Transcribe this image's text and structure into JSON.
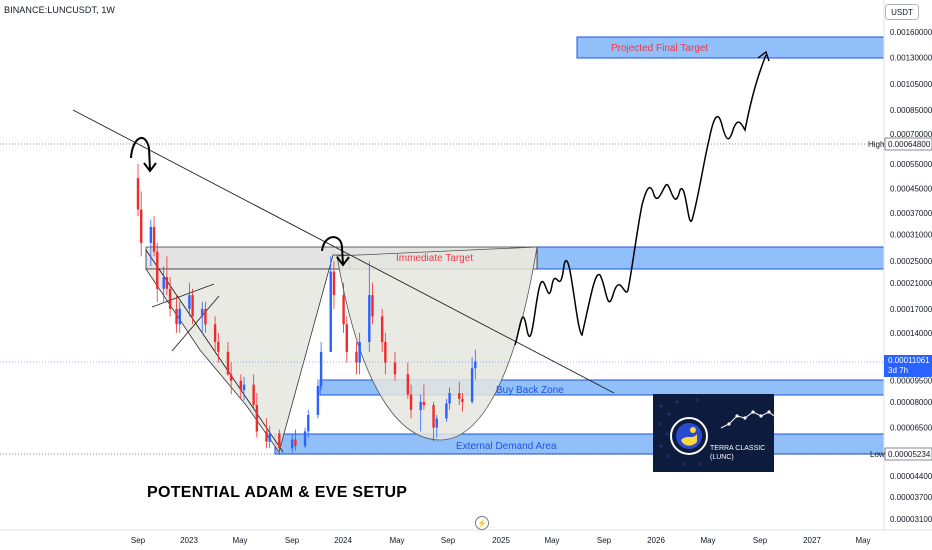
{
  "ticker": "BINANCE:LUNCUSDT, 1W",
  "currency": "USDT",
  "setup_title": "POTENTIAL ADAM & EVE SETUP",
  "logo": {
    "name": "TERRA CLASSIC",
    "symbol": "(LUNC)"
  },
  "zones": {
    "projected_target": "Projected Final Target",
    "immediate_target": "Immediate Target",
    "buy_back": "Buy Back Zone",
    "external_demand": "External Demand Area"
  },
  "price_axis": {
    "ticks": [
      "0.00160000",
      "0.00130000",
      "0.00105000",
      "0.00085000",
      "0.00070000",
      "0.00055000",
      "0.00045000",
      "0.00037000",
      "0.00031000",
      "0.00025000",
      "0.00021000",
      "0.00017000",
      "0.00014000",
      "0.00009500",
      "0.00008000",
      "0.00006500",
      "0.00004400",
      "0.00003700",
      "0.00003100"
    ],
    "high_label": "High",
    "high_value": "0.00064800",
    "low_label": "Low",
    "low_value": "0.00005234",
    "last_price": "0.00011061",
    "countdown": "3d 7h"
  },
  "time_axis": [
    "Sep",
    "2023",
    "May",
    "Sep",
    "2024",
    "May",
    "Sep",
    "2025",
    "May",
    "Sep",
    "2026",
    "May",
    "Sep",
    "2027",
    "May"
  ],
  "colors": {
    "up": "#2962ff",
    "down": "#ef2b2b",
    "zone_fill": "#90bff9",
    "zone_border": "#1e53e5",
    "cup_fill": "#d9d9d9",
    "text_red": "#f23645",
    "text_blue": "#1e53e5"
  },
  "chart_data": {
    "type": "candlestick",
    "symbol": "LUNCUSDT",
    "interval": "1W",
    "y_scale": "log",
    "ylim": [
      2.9e-05,
      0.0021
    ],
    "x_range": [
      "2022-08",
      "2027-08"
    ],
    "grid": false,
    "last_price": 0.00011061,
    "high": 0.000648,
    "low": 5.234e-05,
    "zones": [
      {
        "label": "Projected Final Target",
        "from": 0.00128,
        "to": 0.00161
      },
      {
        "label": "Immediate Target",
        "from": 0.00023,
        "to": 0.00028
      },
      {
        "label": "Buy Back Zone",
        "from": 8.55e-05,
        "to": 9.55e-05
      },
      {
        "label": "External Demand Area",
        "from": 5.23e-05,
        "to": 6.3e-05
      }
    ],
    "candles": [
      {
        "t": "2022-09",
        "o": 0.00049,
        "h": 0.00055,
        "l": 0.00036,
        "c": 0.00038
      },
      {
        "t": "2022-09",
        "o": 0.00038,
        "h": 0.00044,
        "l": 0.00026,
        "c": 0.00029
      },
      {
        "t": "2022-10",
        "o": 0.00029,
        "h": 0.00035,
        "l": 0.00024,
        "c": 0.00033
      },
      {
        "t": "2022-10",
        "o": 0.00033,
        "h": 0.00036,
        "l": 0.00026,
        "c": 0.00027
      },
      {
        "t": "2022-10",
        "o": 0.00027,
        "h": 0.00029,
        "l": 0.00018,
        "c": 0.0002
      },
      {
        "t": "2022-11",
        "o": 0.0002,
        "h": 0.00024,
        "l": 0.00018,
        "c": 0.00022
      },
      {
        "t": "2022-11",
        "o": 0.00022,
        "h": 0.00026,
        "l": 0.00019,
        "c": 0.0002
      },
      {
        "t": "2022-11",
        "o": 0.0002,
        "h": 0.00022,
        "l": 0.00016,
        "c": 0.00017
      },
      {
        "t": "2022-12",
        "o": 0.00017,
        "h": 0.00019,
        "l": 0.00014,
        "c": 0.00015
      },
      {
        "t": "2022-12",
        "o": 0.00015,
        "h": 0.00018,
        "l": 0.00014,
        "c": 0.00017
      },
      {
        "t": "2023-01",
        "o": 0.00017,
        "h": 0.00021,
        "l": 0.00016,
        "c": 0.00019
      },
      {
        "t": "2023-01",
        "o": 0.00019,
        "h": 0.0002,
        "l": 0.00015,
        "c": 0.00016
      },
      {
        "t": "2023-02",
        "o": 0.00016,
        "h": 0.00018,
        "l": 0.00014,
        "c": 0.00017
      },
      {
        "t": "2023-02",
        "o": 0.00017,
        "h": 0.00018,
        "l": 0.00014,
        "c": 0.00015
      },
      {
        "t": "2023-03",
        "o": 0.00015,
        "h": 0.00016,
        "l": 0.00012,
        "c": 0.00013
      },
      {
        "t": "2023-03",
        "o": 0.00013,
        "h": 0.00014,
        "l": 0.00011,
        "c": 0.00012
      },
      {
        "t": "2023-04",
        "o": 0.00012,
        "h": 0.00013,
        "l": 9.9e-05,
        "c": 0.0001
      },
      {
        "t": "2023-04",
        "o": 0.0001,
        "h": 0.00011,
        "l": 8.5e-05,
        "c": 9.5e-05
      },
      {
        "t": "2023-05",
        "o": 9.5e-05,
        "h": 0.0001,
        "l": 8.2e-05,
        "c": 8.8e-05
      },
      {
        "t": "2023-05",
        "o": 8.8e-05,
        "h": 9.8e-05,
        "l": 8.1e-05,
        "c": 9.2e-05
      },
      {
        "t": "2023-06",
        "o": 9.2e-05,
        "h": 0.0001,
        "l": 7.5e-05,
        "c": 7.8e-05
      },
      {
        "t": "2023-06",
        "o": 7.8e-05,
        "h": 8.6e-05,
        "l": 6e-05,
        "c": 6.3e-05
      },
      {
        "t": "2023-07",
        "o": 6.3e-05,
        "h": 7e-05,
        "l": 5.5e-05,
        "c": 5.8e-05
      },
      {
        "t": "2023-07",
        "o": 5.8e-05,
        "h": 6.6e-05,
        "l": 5.5e-05,
        "c": 6.2e-05
      },
      {
        "t": "2023-08",
        "o": 6.2e-05,
        "h": 6.4e-05,
        "l": 5.2e-05,
        "c": 5.5e-05
      },
      {
        "t": "2023-09",
        "o": 5.5e-05,
        "h": 6.2e-05,
        "l": 5.3e-05,
        "c": 5.9e-05
      },
      {
        "t": "2023-09",
        "o": 5.9e-05,
        "h": 6.4e-05,
        "l": 5.4e-05,
        "c": 5.6e-05
      },
      {
        "t": "2023-10",
        "o": 5.6e-05,
        "h": 6.5e-05,
        "l": 5.5e-05,
        "c": 6.3e-05
      },
      {
        "t": "2023-10",
        "o": 6.3e-05,
        "h": 7.5e-05,
        "l": 6e-05,
        "c": 7.2e-05
      },
      {
        "t": "2023-11",
        "o": 7.2e-05,
        "h": 9.6e-05,
        "l": 7e-05,
        "c": 9.1e-05
      },
      {
        "t": "2023-11",
        "o": 9.1e-05,
        "h": 0.00013,
        "l": 8.8e-05,
        "c": 0.00012
      },
      {
        "t": "2023-12",
        "o": 0.00012,
        "h": 0.00026,
        "l": 0.00012,
        "c": 0.00023
      },
      {
        "t": "2023-12",
        "o": 0.00023,
        "h": 0.00025,
        "l": 0.00017,
        "c": 0.00019
      },
      {
        "t": "2024-01",
        "o": 0.00019,
        "h": 0.00021,
        "l": 0.00014,
        "c": 0.00015
      },
      {
        "t": "2024-01",
        "o": 0.00015,
        "h": 0.00016,
        "l": 0.00011,
        "c": 0.00012
      },
      {
        "t": "2024-02",
        "o": 0.00012,
        "h": 0.00013,
        "l": 0.0001,
        "c": 0.00011
      },
      {
        "t": "2024-02",
        "o": 0.00011,
        "h": 0.00014,
        "l": 0.0001,
        "c": 0.00013
      },
      {
        "t": "2024-03",
        "o": 0.00013,
        "h": 0.00025,
        "l": 0.00012,
        "c": 0.00019
      },
      {
        "t": "2024-03",
        "o": 0.00019,
        "h": 0.00021,
        "l": 0.00015,
        "c": 0.00016
      },
      {
        "t": "2024-04",
        "o": 0.00016,
        "h": 0.00017,
        "l": 0.00012,
        "c": 0.00013
      },
      {
        "t": "2024-04",
        "o": 0.00013,
        "h": 0.00014,
        "l": 0.0001,
        "c": 0.00011
      },
      {
        "t": "2024-05",
        "o": 0.00011,
        "h": 0.00012,
        "l": 9.5e-05,
        "c": 0.0001
      },
      {
        "t": "2024-06",
        "o": 0.0001,
        "h": 0.00011,
        "l": 8.2e-05,
        "c": 8.5e-05
      },
      {
        "t": "2024-06",
        "o": 8.5e-05,
        "h": 9.2e-05,
        "l": 7e-05,
        "c": 7.5e-05
      },
      {
        "t": "2024-07",
        "o": 7.5e-05,
        "h": 8.5e-05,
        "l": 6.3e-05,
        "c": 8e-05
      },
      {
        "t": "2024-07",
        "o": 8e-05,
        "h": 9.2e-05,
        "l": 7.5e-05,
        "c": 7.8e-05
      },
      {
        "t": "2024-08",
        "o": 7.8e-05,
        "h": 8e-05,
        "l": 5.8e-05,
        "c": 6.5e-05
      },
      {
        "t": "2024-08",
        "o": 6.5e-05,
        "h": 7.2e-05,
        "l": 6e-05,
        "c": 7e-05
      },
      {
        "t": "2024-09",
        "o": 7e-05,
        "h": 8.2e-05,
        "l": 6.8e-05,
        "c": 7.9e-05
      },
      {
        "t": "2024-09",
        "o": 7.9e-05,
        "h": 9e-05,
        "l": 7.5e-05,
        "c": 8.6e-05
      },
      {
        "t": "2024-10",
        "o": 8.6e-05,
        "h": 9.4e-05,
        "l": 7.8e-05,
        "c": 8.2e-05
      },
      {
        "t": "2024-10",
        "o": 8.2e-05,
        "h": 8.6e-05,
        "l": 7.4e-05,
        "c": 8e-05
      },
      {
        "t": "2024-11",
        "o": 8e-05,
        "h": 0.000115,
        "l": 7.9e-05,
        "c": 0.000105
      },
      {
        "t": "2024-11",
        "o": 0.000105,
        "h": 0.000122,
        "l": 9.6e-05,
        "c": 0.000111
      }
    ]
  }
}
